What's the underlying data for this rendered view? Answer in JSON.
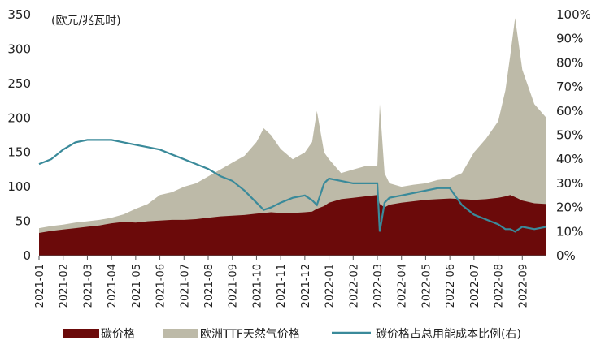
{
  "chart_data": {
    "type": "area",
    "unit_label": "(欧元/兆瓦时)",
    "x_ticks": [
      "2021-01",
      "2021-02",
      "2021-03",
      "2021-04",
      "2021-05",
      "2021-06",
      "2021-07",
      "2021-08",
      "2021-09",
      "2021-10",
      "2021-11",
      "2021-12",
      "2022-01",
      "2022-02",
      "2022-03",
      "2022-04",
      "2022-05",
      "2022-06",
      "2022-07",
      "2022-08",
      "2022-09"
    ],
    "y_left": {
      "min": 0,
      "max": 350,
      "ticks": [
        "0",
        "50",
        "100",
        "150",
        "200",
        "250",
        "300",
        "350"
      ]
    },
    "y_right": {
      "min": 0,
      "max": 100,
      "ticks": [
        "0%",
        "10%",
        "20%",
        "30%",
        "40%",
        "50%",
        "60%",
        "70%",
        "80%",
        "90%",
        "100%"
      ]
    },
    "colors": {
      "carbon": "#6b0a0a",
      "ttf": "#bdbaa8",
      "ratio": "#3a8a9a"
    },
    "x": [
      0,
      0.5,
      1,
      1.5,
      2,
      2.5,
      3,
      3.5,
      4,
      4.5,
      5,
      5.5,
      6,
      6.5,
      7,
      7.5,
      8,
      8.5,
      9,
      9.3,
      9.6,
      10,
      10.5,
      11,
      11.3,
      11.5,
      11.8,
      12,
      12.5,
      13,
      13.5,
      14,
      14.1,
      14.3,
      14.5,
      15,
      15.5,
      16,
      16.5,
      17,
      17.5,
      18,
      18.5,
      19,
      19.3,
      19.5,
      19.7,
      20,
      20.5,
      21
    ],
    "series": [
      {
        "name": "碳价格",
        "axis": "left",
        "values": [
          33,
          36,
          38,
          40,
          42,
          44,
          47,
          49,
          48,
          50,
          51,
          52,
          52,
          53,
          55,
          57,
          58,
          59,
          61,
          62,
          63,
          62,
          62,
          63,
          64,
          68,
          72,
          77,
          82,
          84,
          86,
          88,
          75,
          70,
          74,
          77,
          79,
          81,
          82,
          83,
          82,
          81,
          82,
          84,
          86,
          88,
          85,
          80,
          76,
          75
        ]
      },
      {
        "name": "欧洲TTF天然气价格",
        "axis": "left",
        "values": [
          40,
          43,
          45,
          48,
          50,
          52,
          55,
          60,
          68,
          75,
          88,
          92,
          100,
          105,
          115,
          125,
          135,
          145,
          165,
          185,
          175,
          155,
          140,
          150,
          165,
          210,
          150,
          140,
          120,
          125,
          130,
          130,
          220,
          120,
          105,
          100,
          103,
          105,
          110,
          112,
          120,
          150,
          170,
          195,
          240,
          290,
          345,
          270,
          220,
          200
        ]
      },
      {
        "name": "碳价格占总用能成本比例(右)",
        "axis": "right",
        "values": [
          38,
          40,
          44,
          47,
          48,
          48,
          48,
          47,
          46,
          45,
          44,
          42,
          40,
          38,
          36,
          33,
          31,
          27,
          22,
          19,
          20,
          22,
          24,
          25,
          23,
          21,
          30,
          32,
          31,
          30,
          30,
          30,
          10,
          22,
          24,
          25,
          26,
          27,
          28,
          28,
          21,
          17,
          15,
          13,
          11,
          11,
          10,
          12,
          11,
          12
        ]
      }
    ]
  }
}
